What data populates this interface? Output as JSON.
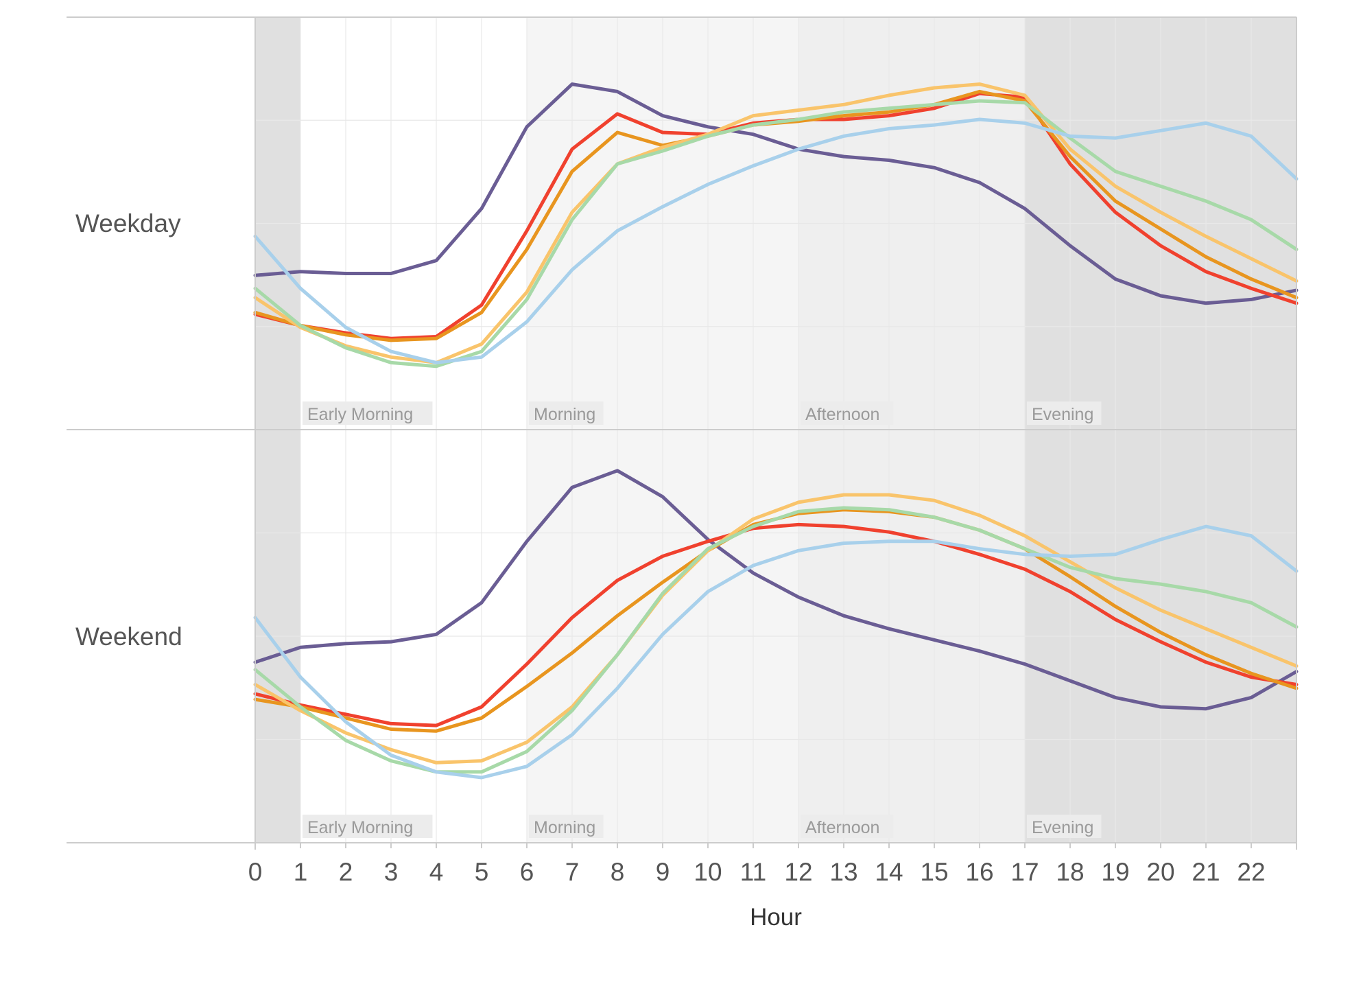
{
  "colors": {
    "period_early_morning": "#ffffff",
    "period_morning": "#f5f5f5",
    "period_afternoon": "#efefef",
    "period_evening": "#e0e0e0",
    "period_night": "#e0e0e0",
    "grid": "#e8e8e8",
    "axis": "#cccccc",
    "label_box": "#ececec"
  },
  "chart_data": {
    "type": "line",
    "xlabel": "Hour",
    "x": [
      0,
      1,
      2,
      3,
      4,
      5,
      6,
      7,
      8,
      9,
      10,
      11,
      12,
      13,
      14,
      15,
      16,
      17,
      18,
      19,
      20,
      21,
      22,
      23
    ],
    "x_tick_labels": [
      "0",
      "1",
      "2",
      "3",
      "4",
      "5",
      "6",
      "7",
      "8",
      "9",
      "10",
      "11",
      "12",
      "13",
      "14",
      "15",
      "16",
      "17",
      "18",
      "19",
      "20",
      "21",
      "22"
    ],
    "xlim": [
      0,
      23
    ],
    "ylim": [
      0,
      100
    ],
    "grid": true,
    "legend": "none",
    "periods": [
      {
        "name": "",
        "start": 0,
        "end": 1,
        "color_key": "period_night"
      },
      {
        "name": "Early Morning",
        "start": 1,
        "end": 6,
        "color_key": "period_early_morning"
      },
      {
        "name": "Morning",
        "start": 6,
        "end": 12,
        "color_key": "period_morning"
      },
      {
        "name": "Afternoon",
        "start": 12,
        "end": 17,
        "color_key": "period_afternoon"
      },
      {
        "name": "Evening",
        "start": 17,
        "end": 23,
        "color_key": "period_evening"
      }
    ],
    "panels": [
      {
        "label": "Weekday",
        "series": [
          {
            "name": "purple",
            "color": "#6a5d94",
            "values": [
              36,
              37,
              36.5,
              36.5,
              40,
              54,
              76,
              87.5,
              85.5,
              79,
              76,
              74,
              70,
              68,
              67,
              65,
              61,
              54,
              44,
              35,
              30.5,
              28.5,
              29.5,
              32
            ]
          },
          {
            "name": "red",
            "color": "#f0412e",
            "values": [
              25.5,
              22.5,
              20.5,
              19,
              19.5,
              28,
              48,
              70,
              79.5,
              74.5,
              74,
              77,
              78,
              78,
              79,
              81,
              85,
              84,
              66,
              53,
              44,
              37,
              32.5,
              28.5
            ]
          },
          {
            "name": "orange",
            "color": "#e8951f",
            "values": [
              26,
              22.5,
              20,
              18.5,
              19,
              26,
              43,
              64,
              74.5,
              71,
              73.5,
              76.5,
              77.5,
              79,
              80,
              82,
              85.5,
              83,
              68,
              56,
              48.5,
              41,
              35,
              30
            ]
          },
          {
            "name": "yellow",
            "color": "#f9c46b",
            "values": [
              30,
              22,
              17,
              14,
              12.5,
              17.5,
              31.5,
              53,
              66,
              70.5,
              74,
              79,
              80.5,
              82,
              84.5,
              86.5,
              87.5,
              84.5,
              70,
              60,
              53,
              46.5,
              40.5,
              34.5
            ]
          },
          {
            "name": "green",
            "color": "#a7d9a8",
            "values": [
              32.5,
              22.5,
              16.5,
              12.5,
              11.5,
              15.5,
              29.5,
              51,
              66,
              69.5,
              73.5,
              76.5,
              78,
              80,
              81,
              82,
              83,
              82.5,
              73,
              64,
              60,
              56,
              51,
              43
            ]
          },
          {
            "name": "blue",
            "color": "#a8d0eb",
            "values": [
              46.5,
              32.5,
              22,
              15.5,
              12.5,
              14,
              23.5,
              37.5,
              48,
              54.5,
              60.5,
              65.5,
              70,
              73.5,
              75.5,
              76.5,
              78,
              77,
              73.5,
              73,
              75,
              77,
              73.5,
              62
            ]
          }
        ]
      },
      {
        "label": "Weekend",
        "series": [
          {
            "name": "purple",
            "color": "#6a5d94",
            "values": [
              43,
              47,
              48,
              48.5,
              50.5,
              59,
              75.5,
              90,
              94.5,
              87.5,
              76,
              67,
              60.5,
              55.5,
              52,
              49,
              46,
              42.5,
              38,
              33.5,
              31,
              30.5,
              33.5,
              40.5
            ]
          },
          {
            "name": "red",
            "color": "#f0412e",
            "values": [
              34.5,
              31.5,
              29,
              26.5,
              26,
              31,
              42.5,
              55,
              65,
              71.5,
              75.5,
              79,
              80,
              79.5,
              78,
              75.5,
              72,
              68,
              62,
              54.5,
              48.5,
              43,
              39,
              37
            ]
          },
          {
            "name": "orange",
            "color": "#e8951f",
            "values": [
              33,
              31,
              28,
              25,
              24.5,
              28,
              36.5,
              45.5,
              55.5,
              64.5,
              73,
              80,
              83,
              84,
              83.5,
              82,
              78.5,
              73.5,
              66,
              58,
              51,
              45,
              40,
              36
            ]
          },
          {
            "name": "yellow",
            "color": "#f9c46b",
            "values": [
              37,
              30,
              24,
              19.5,
              16,
              16.5,
              21.5,
              31,
              45,
              61,
              73,
              81.5,
              86,
              88,
              88,
              86.5,
              82.5,
              77,
              70,
              63,
              57,
              52,
              47,
              42
            ]
          },
          {
            "name": "green",
            "color": "#a7d9a8",
            "values": [
              41,
              31,
              22,
              16.5,
              13.5,
              13.5,
              19,
              30,
              45,
              61.5,
              73.5,
              79.5,
              83.5,
              84.5,
              84,
              82,
              78.5,
              73.5,
              68.5,
              65.5,
              64,
              62,
              59,
              52.5
            ]
          },
          {
            "name": "blue",
            "color": "#a8d0eb",
            "values": [
              55,
              39,
              27,
              18,
              13.5,
              12,
              15,
              23.5,
              36,
              50.5,
              62,
              69,
              73,
              75,
              75.5,
              75.5,
              73.5,
              72,
              71.5,
              72,
              76,
              79.5,
              77,
              67.5
            ]
          }
        ]
      }
    ]
  }
}
